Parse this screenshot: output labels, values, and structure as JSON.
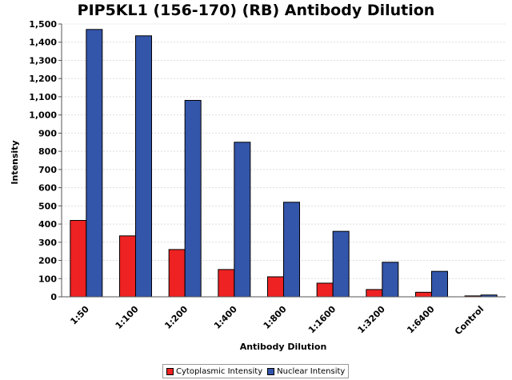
{
  "chart_data": {
    "type": "bar",
    "title": "PIP5KL1 (156-170) (RB) Antibody Dilution",
    "xlabel": "Antibody Dilution",
    "ylabel": "Intensity",
    "ylim": [
      0,
      1500
    ],
    "yticks": [
      0,
      100,
      200,
      300,
      400,
      500,
      600,
      700,
      800,
      900,
      1000,
      1100,
      1200,
      1300,
      1400,
      1500
    ],
    "ytick_labels": [
      "0",
      "100",
      "200",
      "300",
      "400",
      "500",
      "600",
      "700",
      "800",
      "900",
      "1,000",
      "1,100",
      "1,200",
      "1,300",
      "1,400",
      "1,500"
    ],
    "grid": true,
    "legend_position": "bottom",
    "categories": [
      "1:50",
      "1:100",
      "1:200",
      "1:400",
      "1:800",
      "1:1600",
      "1:3200",
      "1:6400",
      "Control"
    ],
    "series": [
      {
        "name": "Cytoplasmic Intensity",
        "color": "#ee2222",
        "values": [
          420,
          335,
          260,
          150,
          110,
          75,
          40,
          25,
          5
        ]
      },
      {
        "name": "Nuclear Intensity",
        "color": "#3355aa",
        "values": [
          1470,
          1435,
          1080,
          850,
          520,
          360,
          190,
          140,
          10
        ]
      }
    ]
  }
}
